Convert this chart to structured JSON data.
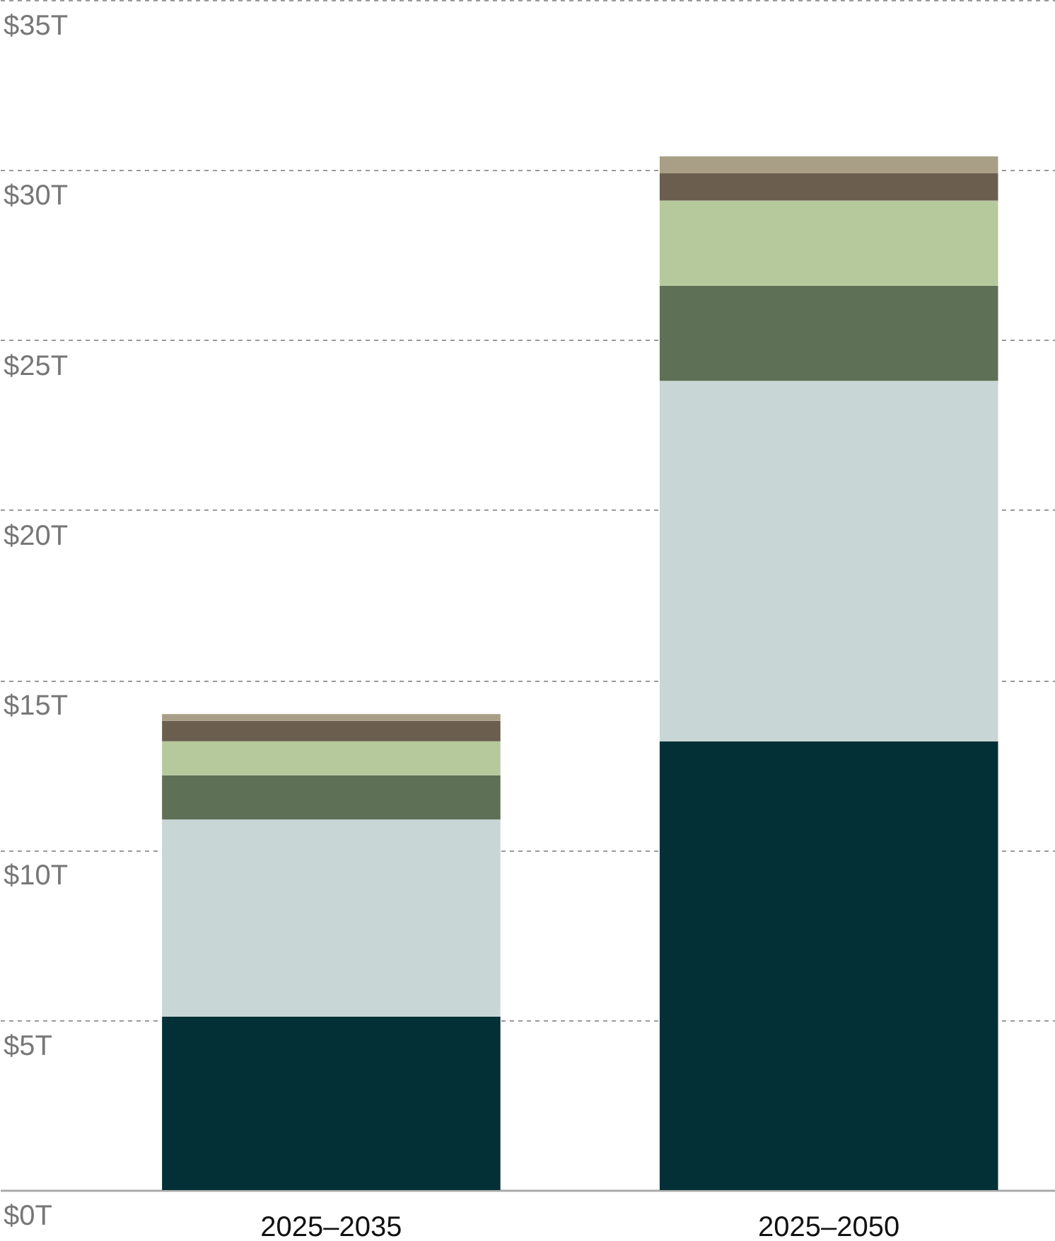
{
  "chart_data": {
    "type": "bar",
    "stacked": true,
    "categories": [
      "2025–2035",
      "2025–2050"
    ],
    "series": [
      {
        "color": "#033036",
        "values": [
          5.1,
          13.2
        ]
      },
      {
        "color": "#c8d6d6",
        "values": [
          5.8,
          10.6
        ]
      },
      {
        "color": "#5e7055",
        "values": [
          1.3,
          2.8
        ]
      },
      {
        "color": "#b5c99c",
        "values": [
          1.0,
          2.5
        ]
      },
      {
        "color": "#6b5e4f",
        "values": [
          0.6,
          0.8
        ]
      },
      {
        "color": "#a89f86",
        "values": [
          0.2,
          0.5
        ]
      }
    ],
    "ylim": [
      0,
      35
    ],
    "yticks": [
      {
        "value": 0,
        "label": "$0T"
      },
      {
        "value": 5,
        "label": "$5T"
      },
      {
        "value": 10,
        "label": "$10T"
      },
      {
        "value": 15,
        "label": "$15T"
      },
      {
        "value": 20,
        "label": "$20T"
      },
      {
        "value": 25,
        "label": "$25T"
      },
      {
        "value": 30,
        "label": "$30T"
      },
      {
        "value": 35,
        "label": "$35T"
      }
    ],
    "grid": "y",
    "legend": false
  }
}
